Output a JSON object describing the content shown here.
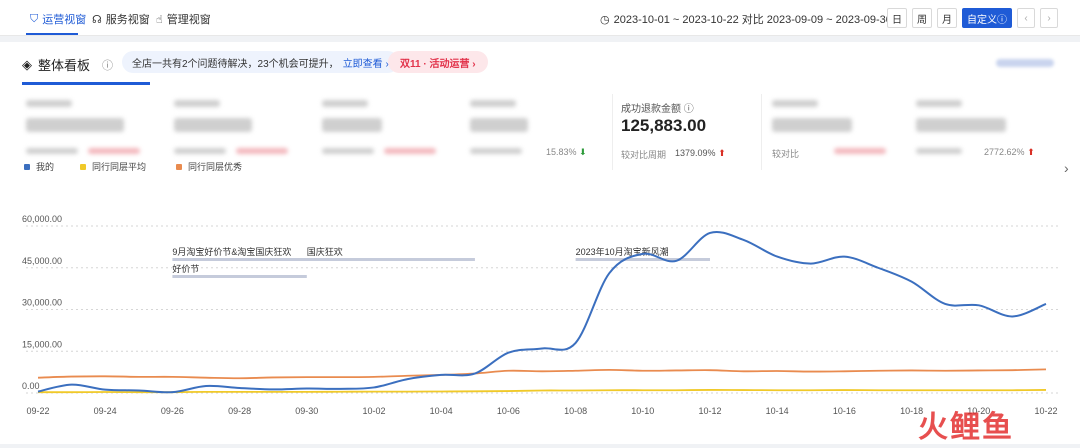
{
  "topbar": {
    "tabs": [
      {
        "label": "运营视窗",
        "icon": "shield-icon"
      },
      {
        "label": "服务视窗",
        "icon": "headset-icon"
      },
      {
        "label": "管理视窗",
        "icon": "hand-icon"
      }
    ],
    "date_range": "2023-10-01 ~ 2023-10-22 对比 2023-09-09 ~ 2023-09-30",
    "period_buttons": [
      "日",
      "周",
      "月"
    ],
    "custom_button": "自定义",
    "prev_glyph": "‹",
    "next_glyph": "›"
  },
  "panel": {
    "title": "整体看板",
    "info_glyph": "ⓘ",
    "notice_text": "全店一共有2个问题待解决，23个机会可提升，",
    "notice_link": "立即查看 ›",
    "promo": "双11 · 活动运营 ›"
  },
  "metrics": {
    "m4_pct": "15.83%",
    "refund_label": "成功退款金额",
    "refund_value": "125,883.00",
    "refund_sub_label": "较对比周期",
    "refund_sub_value": "1379.09%",
    "m6_sub_label": "较对比",
    "m7_pct": "2772.62%"
  },
  "colors": {
    "mine": "#3b6fbf",
    "avg": "#f0c929",
    "best": "#e98b4f",
    "accent": "#1f5bd6"
  },
  "chart_data": {
    "type": "line",
    "legend_position": "top-left",
    "grid": true,
    "ylim": [
      0,
      60000
    ],
    "yticks": [
      "0.00",
      "15,000.00",
      "30,000.00",
      "45,000.00",
      "60,000.00"
    ],
    "x": [
      "09-22",
      "09-23",
      "09-24",
      "09-25",
      "09-26",
      "09-27",
      "09-28",
      "09-29",
      "09-30",
      "10-01",
      "10-02",
      "10-03",
      "10-04",
      "10-05",
      "10-06",
      "10-07",
      "10-08",
      "10-09",
      "10-10",
      "10-11",
      "10-12",
      "10-13",
      "10-14",
      "10-15",
      "10-16",
      "10-17",
      "10-18",
      "10-19",
      "10-20",
      "10-21",
      "10-22"
    ],
    "xticks": [
      "09-22",
      "09-24",
      "09-26",
      "09-28",
      "09-30",
      "10-02",
      "10-04",
      "10-06",
      "10-08",
      "10-10",
      "10-12",
      "10-14",
      "10-16",
      "10-18",
      "10-20",
      "10-22"
    ],
    "series": [
      {
        "name": "我的",
        "color": "#3b6fbf",
        "values": [
          500,
          3000,
          1200,
          900,
          300,
          2500,
          1800,
          1300,
          1600,
          1500,
          2000,
          5000,
          6500,
          7000,
          14500,
          16000,
          18000,
          43000,
          50000,
          47500,
          57500,
          55000,
          49000,
          46500,
          49000,
          45000,
          40000,
          32000,
          31500,
          27500,
          32000
        ]
      },
      {
        "name": "同行同层平均",
        "color": "#f0c929",
        "values": [
          300,
          300,
          350,
          300,
          300,
          400,
          400,
          400,
          400,
          450,
          500,
          500,
          550,
          600,
          700,
          900,
          900,
          1000,
          1000,
          1000,
          1100,
          1050,
          1000,
          1000,
          1050,
          1000,
          1000,
          1000,
          1000,
          1000,
          1100
        ]
      },
      {
        "name": "同行同层优秀",
        "color": "#e98b4f",
        "values": [
          5500,
          5900,
          6000,
          5800,
          5800,
          5500,
          5300,
          5600,
          5700,
          5700,
          5800,
          6200,
          6500,
          7000,
          8000,
          7800,
          8000,
          8300,
          8000,
          8100,
          8200,
          7800,
          7900,
          7700,
          7800,
          8000,
          8100,
          8000,
          8100,
          8200,
          8500
        ]
      }
    ],
    "annotations": [
      {
        "text": "9月淘宝好价节&淘宝国庆狂欢",
        "start": "09-26",
        "end": "10-05",
        "row": 1
      },
      {
        "text": "好价节",
        "start": "09-26",
        "end": "09-30",
        "row": 2
      },
      {
        "text": "国庆狂欢",
        "start": "09-30",
        "end": "10-05",
        "row": 1
      },
      {
        "text": "2023年10月淘宝新风潮",
        "start": "10-08",
        "end": "10-12",
        "row": 1
      }
    ]
  },
  "watermark": "火鲤鱼"
}
